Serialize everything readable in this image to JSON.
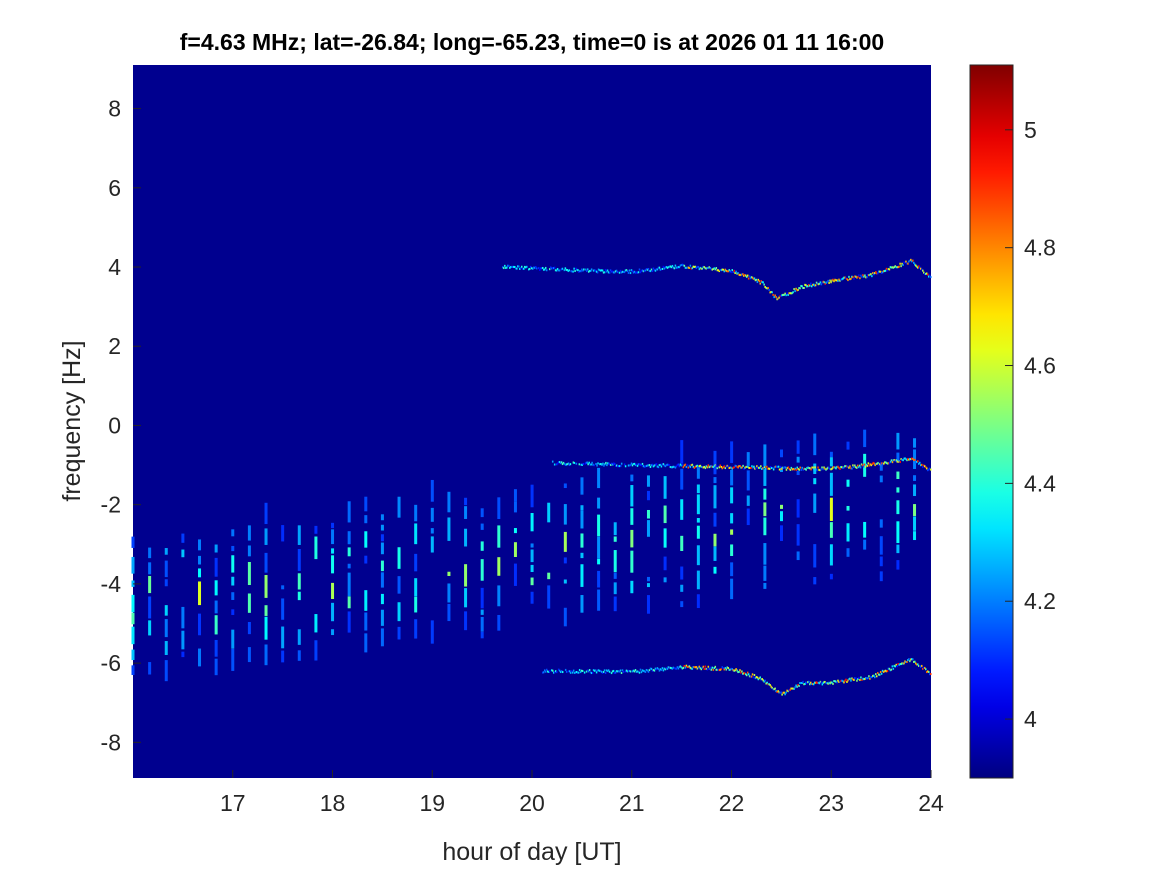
{
  "chart_data": {
    "type": "heatmap",
    "title": "f=4.63 MHz;  lat=-26.84; long=-65.23, time=0 is at 2026 01 11 16:00",
    "xlabel": "hour of day [UT]",
    "ylabel": "frequency [Hz]",
    "xlim": [
      16,
      24
    ],
    "ylim": [
      -8.9,
      9.1
    ],
    "xticks": [
      17,
      18,
      19,
      20,
      21,
      22,
      23,
      24
    ],
    "yticks": [
      8,
      6,
      4,
      2,
      0,
      -2,
      -4,
      -6,
      -8
    ],
    "colorbar": {
      "clim": [
        3.9,
        5.11
      ],
      "ticks": [
        5,
        4.8,
        4.6,
        4.4,
        4.2,
        4
      ],
      "colormap": "jet"
    },
    "background_value": 3.92,
    "streaks": {
      "start_hour": 16.0,
      "end_hour": 23.84,
      "interval_hour": 0.1667,
      "center_start_hz": -4.8,
      "center_end_hz": -2.0,
      "half_span_hz": 1.5
    },
    "traces": [
      {
        "name": "upper",
        "points": [
          [
            19.7,
            4.0
          ],
          [
            20.2,
            3.95
          ],
          [
            20.6,
            3.9
          ],
          [
            21,
            3.88
          ],
          [
            21.5,
            4.02
          ],
          [
            22,
            3.9
          ],
          [
            22.3,
            3.6
          ],
          [
            22.45,
            3.2
          ],
          [
            22.7,
            3.5
          ],
          [
            23,
            3.65
          ],
          [
            23.4,
            3.8
          ],
          [
            23.8,
            4.15
          ],
          [
            24,
            3.7
          ]
        ]
      },
      {
        "name": "middle",
        "points": [
          [
            20.2,
            -0.95
          ],
          [
            21,
            -1.0
          ],
          [
            22,
            -1.05
          ],
          [
            22.8,
            -1.1
          ],
          [
            23.2,
            -1.05
          ],
          [
            23.5,
            -0.95
          ],
          [
            23.8,
            -0.85
          ],
          [
            24,
            -1.15
          ]
        ]
      },
      {
        "name": "lower",
        "points": [
          [
            20.1,
            -6.2
          ],
          [
            21,
            -6.22
          ],
          [
            21.5,
            -6.1
          ],
          [
            22,
            -6.15
          ],
          [
            22.3,
            -6.4
          ],
          [
            22.5,
            -6.8
          ],
          [
            22.7,
            -6.5
          ],
          [
            23,
            -6.5
          ],
          [
            23.4,
            -6.35
          ],
          [
            23.8,
            -5.9
          ],
          [
            24,
            -6.3
          ]
        ]
      }
    ]
  }
}
